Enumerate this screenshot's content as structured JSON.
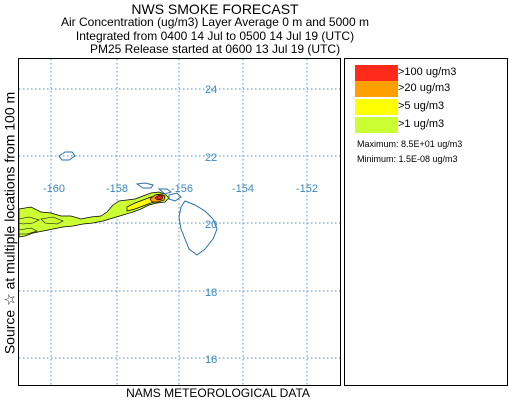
{
  "header": {
    "title": "NWS SMOKE FORECAST",
    "line1": "Air Concentration (ug/m3) Layer Average    0 m and  5000 m",
    "line2": "Integrated from 0400 14 Jul to 0500 14 Jul 19 (UTC)",
    "line3": "PM25 Release started at 0600 13 Jul 19 (UTC)"
  },
  "side_label": "Source ☆    at multiple locations      from   100 m",
  "footer": "NAMS METEOROLOGICAL DATA",
  "map": {
    "lon_labels": [
      "-160",
      "-158",
      "-156",
      "-154",
      "-152"
    ],
    "lat_labels": [
      "24",
      "22",
      "20",
      "18",
      "16"
    ],
    "grid_color": "#4a90c8",
    "label_color": "#3a88c0",
    "coast_color": "#2a6fa8"
  },
  "legend": {
    "items": [
      {
        "label": ">100 ug/m3",
        "color": "#ff2a1a"
      },
      {
        "label": ">20 ug/m3",
        "color": "#ffa000"
      },
      {
        "label": ">5 ug/m3",
        "color": "#ffff00"
      },
      {
        "label": ">1 ug/m3",
        "color": "#ccff33"
      }
    ],
    "maximum": "Maximum: 8.5E+01 ug/m3",
    "minimum": "Minimum: 1.5E-08 ug/m3"
  }
}
